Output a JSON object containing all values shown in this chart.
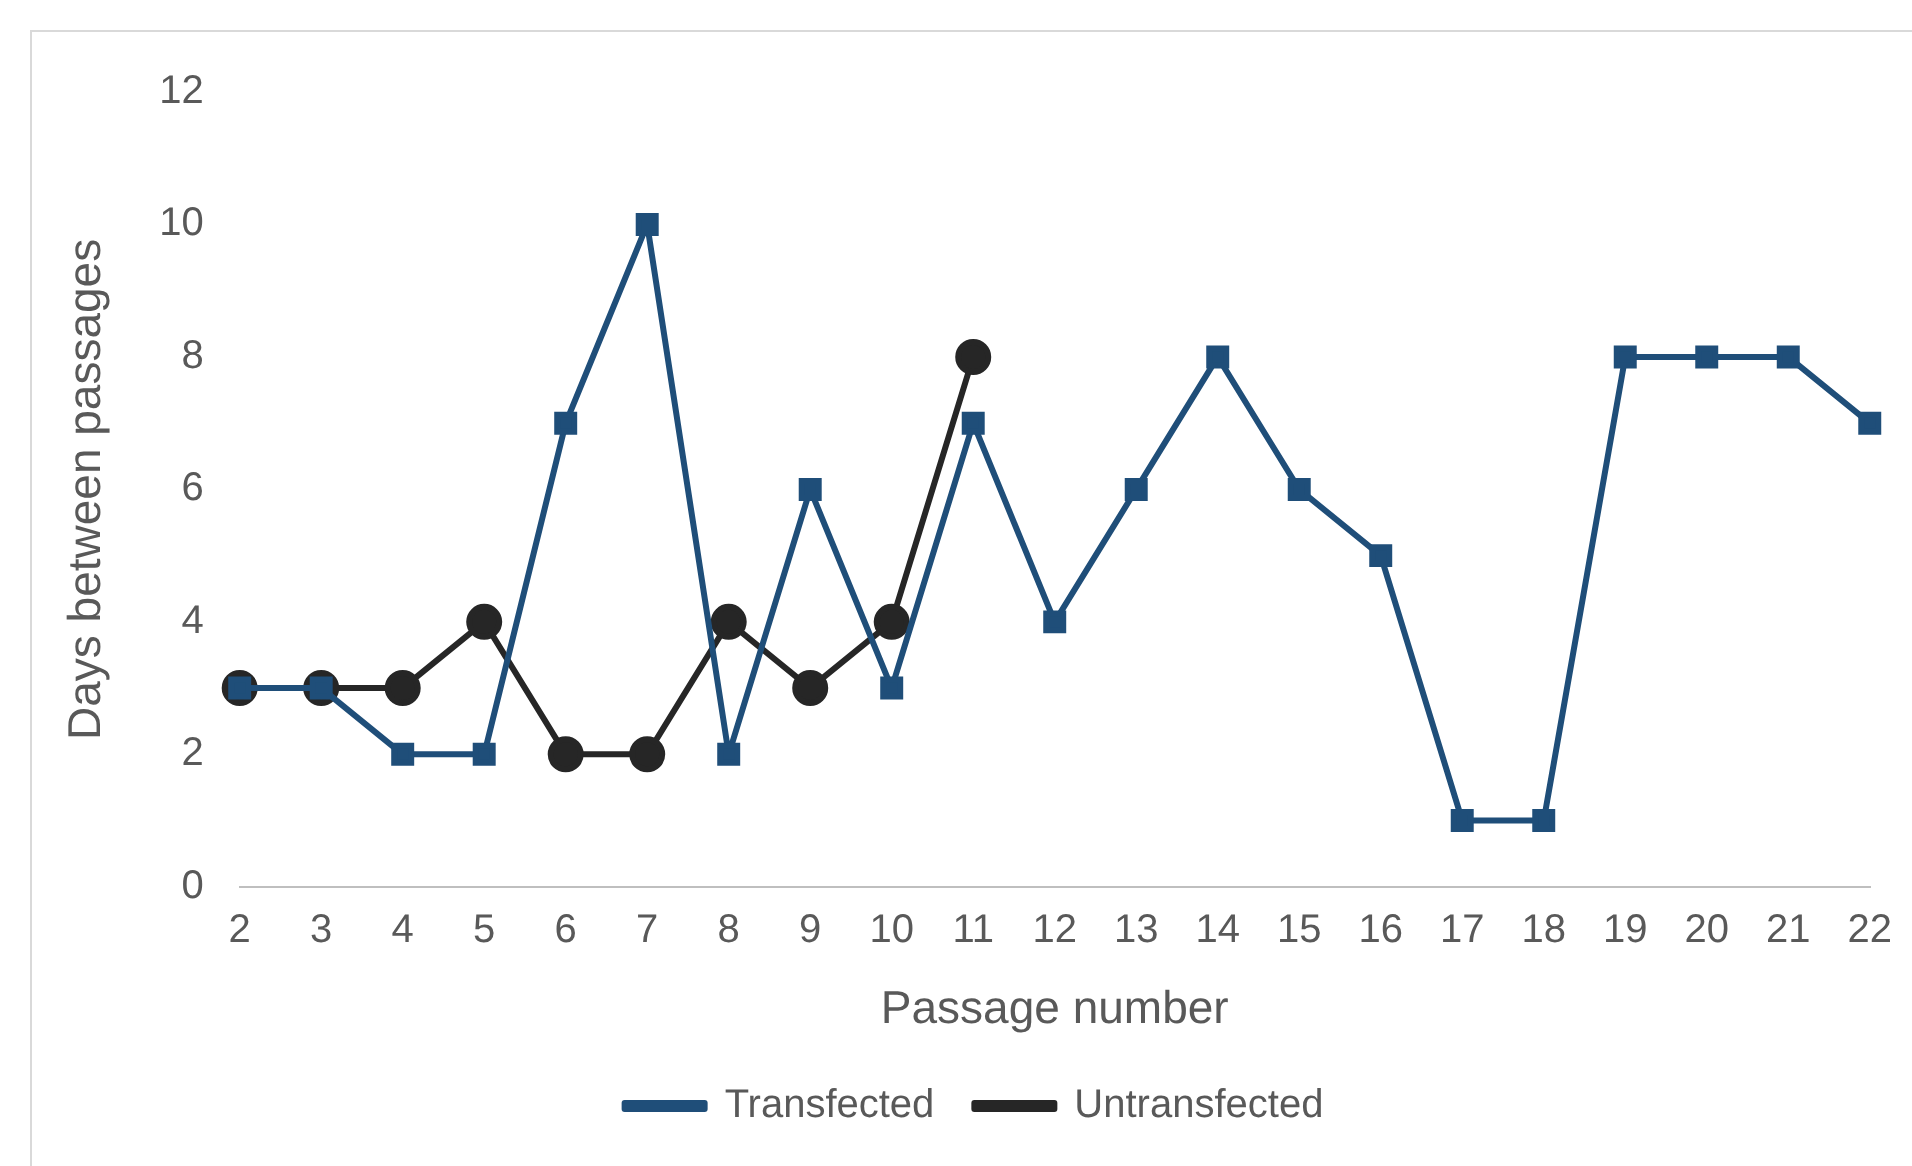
{
  "chart_data": {
    "type": "line",
    "xlabel": "Passage number",
    "ylabel": "Days between passages",
    "categories": [
      "2",
      "3",
      "4",
      "5",
      "6",
      "7",
      "8",
      "9",
      "10",
      "11",
      "12",
      "13",
      "14",
      "15",
      "16",
      "17",
      "18",
      "19",
      "20",
      "21",
      "22"
    ],
    "series": [
      {
        "name": "Transfected",
        "color": "#1f4e79",
        "marker": "square",
        "values": [
          3,
          3,
          2,
          2,
          7,
          10,
          2,
          6,
          3,
          7,
          4,
          6,
          8,
          6,
          5,
          1,
          1,
          8,
          8,
          8,
          7
        ]
      },
      {
        "name": "Untransfected",
        "color": "#262626",
        "marker": "circle",
        "values": [
          3,
          3,
          3,
          4,
          2,
          2,
          4,
          3,
          4,
          8,
          null,
          null,
          null,
          null,
          null,
          null,
          null,
          null,
          null,
          null,
          null
        ]
      }
    ],
    "ylim": [
      0,
      12
    ],
    "yticks": [
      0,
      2,
      4,
      6,
      8,
      10,
      12
    ],
    "grid": false,
    "legend": "bottom"
  }
}
